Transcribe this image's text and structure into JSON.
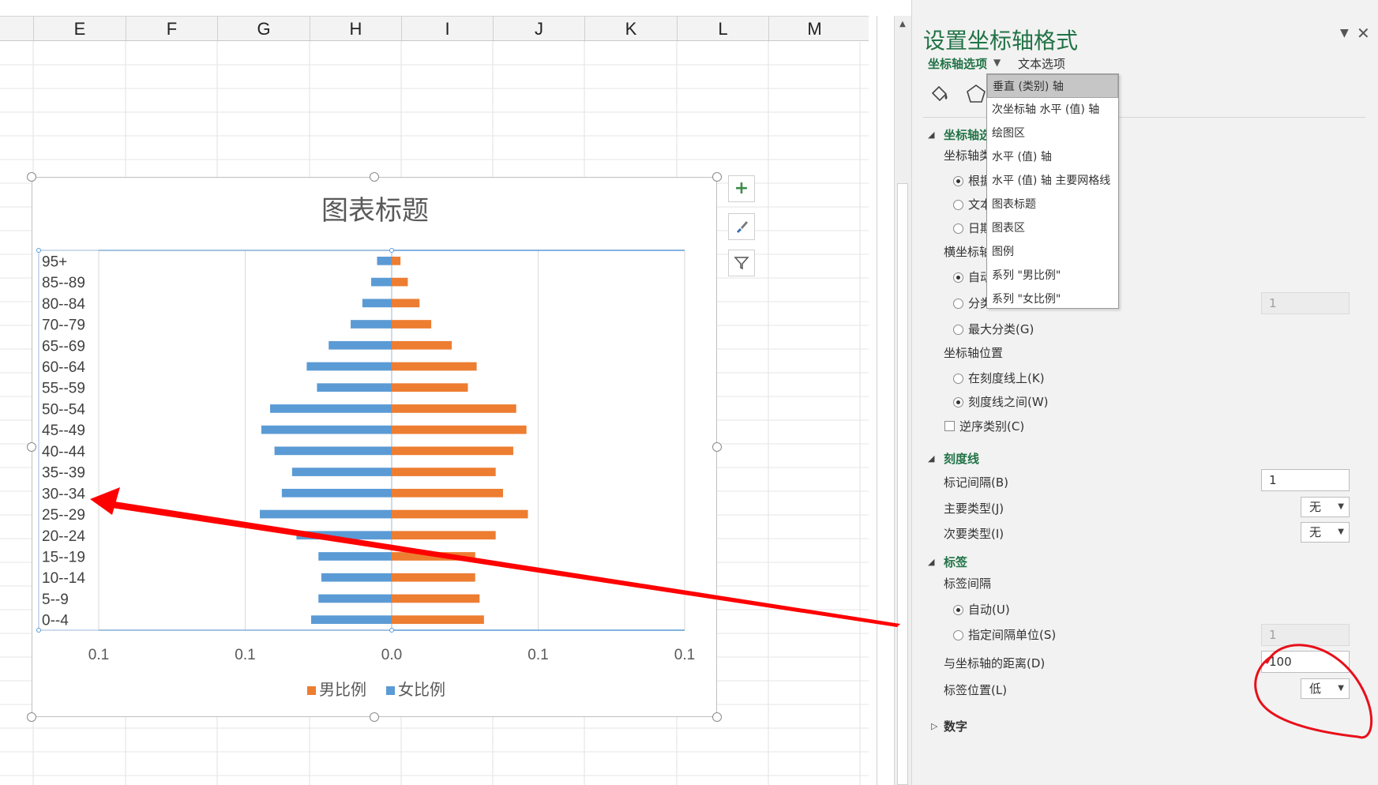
{
  "spreadsheet": {
    "columns": [
      "E",
      "F",
      "G",
      "H",
      "I",
      "J",
      "K",
      "L",
      "M"
    ]
  },
  "chart_data": {
    "type": "bar",
    "orientation": "horizontal",
    "title": "图表标题",
    "categories": [
      "0--4",
      "5--9",
      "10--14",
      "15--19",
      "20--24",
      "25--29",
      "30--34",
      "35--39",
      "40--44",
      "45--49",
      "50--54",
      "55--59",
      "60--64",
      "65--69",
      "70--79",
      "80--84",
      "85--89",
      "95+"
    ],
    "series": [
      {
        "name": "男比例",
        "color": "#ed7d31",
        "values": [
          0.063,
          0.06,
          0.057,
          0.057,
          0.071,
          0.093,
          0.076,
          0.071,
          0.083,
          0.092,
          0.085,
          0.052,
          0.058,
          0.041,
          0.027,
          0.019,
          0.011,
          0.006
        ]
      },
      {
        "name": "女比例",
        "color": "#5b9bd5",
        "values": [
          -0.055,
          -0.05,
          -0.048,
          -0.05,
          -0.065,
          -0.09,
          -0.075,
          -0.068,
          -0.08,
          -0.089,
          -0.083,
          -0.051,
          -0.058,
          -0.043,
          -0.028,
          -0.02,
          -0.014,
          -0.01
        ]
      }
    ],
    "xlim": [
      -0.2,
      0.2
    ],
    "x_tick_labels": [
      "0.1",
      "0.1",
      "0.0",
      "0.1",
      "0.1"
    ],
    "grid": true,
    "legend_position": "bottom"
  },
  "chart_buttons": {
    "add_elements": "+",
    "styles": "brush",
    "filters": "filter"
  },
  "pane": {
    "title": "设置坐标轴格式",
    "tab_axis_options": "坐标轴选项",
    "tab_text_options": "文本选项",
    "section_axis_options": "坐标轴选项",
    "axis_type_label": "坐标轴类型",
    "axis_type_auto": "根据",
    "axis_type_text": "文本",
    "axis_type_date": "日期",
    "horizontal_cross_label": "横坐标轴",
    "cross_auto": "自动",
    "cross_category": "分类",
    "cross_category_value": "1",
    "cross_max": "最大分类(G)",
    "axis_position_label": "坐标轴位置",
    "pos_on_tick": "在刻度线上(K)",
    "pos_between": "刻度线之间(W)",
    "reverse_categories": "逆序类别(C)",
    "section_tickmarks": "刻度线",
    "tick_interval_label": "标记间隔(B)",
    "tick_interval_value": "1",
    "major_type_label": "主要类型(J)",
    "major_type_value": "无",
    "minor_type_label": "次要类型(I)",
    "minor_type_value": "无",
    "section_labels": "标签",
    "label_interval_label": "标签间隔",
    "label_interval_auto": "自动(U)",
    "label_interval_specify": "指定间隔单位(S)",
    "label_interval_value": "1",
    "distance_label": "与坐标轴的距离(D)",
    "distance_value": "100",
    "label_position_label": "标签位置(L)",
    "label_position_value": "低",
    "section_number": "数字"
  },
  "axis_menu": {
    "items": [
      "垂直 (类别) 轴",
      "次坐标轴 水平 (值) 轴",
      "绘图区",
      "水平 (值) 轴",
      "水平 (值) 轴 主要网格线",
      "图表标题",
      "图表区",
      "图例",
      "系列 \"男比例\"",
      "系列 \"女比例\""
    ]
  },
  "annotation_colors": {
    "arrow": "#ff0000",
    "circle": "#e8101a"
  }
}
